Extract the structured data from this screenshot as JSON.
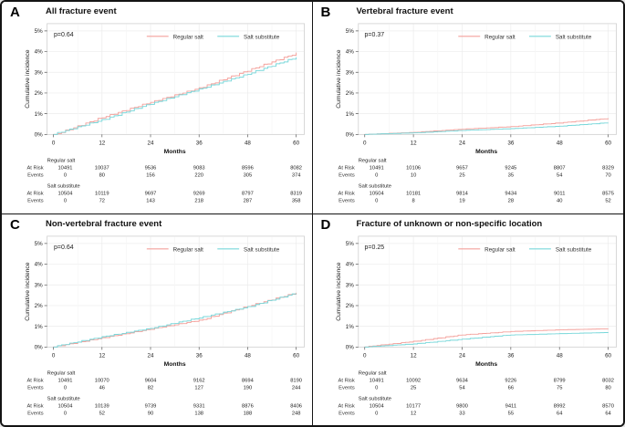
{
  "figure": {
    "legend": [
      {
        "name": "Regular salt",
        "color": "#F4A09B"
      },
      {
        "name": "Salt substitute",
        "color": "#78D7DA"
      }
    ],
    "axes": {
      "x_label": "Months",
      "y_label": "Cumulative incidence",
      "x_ticks": [
        0,
        12,
        24,
        36,
        48,
        60
      ],
      "y_tick_labels": [
        "0%",
        "1%",
        "2%",
        "3%",
        "4%",
        "5%"
      ],
      "ylim": [
        0,
        5
      ]
    },
    "risk_row_labels": {
      "at_risk": "At Risk",
      "events": "Events"
    }
  },
  "panels": [
    {
      "letter": "A",
      "title": "All fracture event",
      "p_value": "p=0.64",
      "risk_table": {
        "groups": [
          {
            "name": "Regular salt",
            "at_risk": [
              10491,
              10037,
              9536,
              9083,
              8596,
              8082
            ],
            "events": [
              0,
              80,
              156,
              220,
              305,
              374
            ]
          },
          {
            "name": "Salt substitute",
            "at_risk": [
              10504,
              10119,
              9697,
              9269,
              8797,
              8319
            ],
            "events": [
              0,
              72,
              143,
              218,
              287,
              358
            ]
          }
        ]
      }
    },
    {
      "letter": "B",
      "title": "Vertebral fracture event",
      "p_value": "p=0.37",
      "risk_table": {
        "groups": [
          {
            "name": "Regular salt",
            "at_risk": [
              10491,
              10106,
              9657,
              9245,
              8807,
              8329
            ],
            "events": [
              0,
              10,
              25,
              35,
              54,
              70
            ]
          },
          {
            "name": "Salt substitute",
            "at_risk": [
              10504,
              10181,
              9814,
              9434,
              9011,
              8575
            ],
            "events": [
              0,
              8,
              19,
              28,
              40,
              52
            ]
          }
        ]
      }
    },
    {
      "letter": "C",
      "title": "Non-vertebral fracture event",
      "p_value": "p=0.64",
      "risk_table": {
        "groups": [
          {
            "name": "Regular salt",
            "at_risk": [
              10491,
              10070,
              9604,
              9162,
              8694,
              8190
            ],
            "events": [
              0,
              46,
              82,
              127,
              190,
              244
            ]
          },
          {
            "name": "Salt substitute",
            "at_risk": [
              10504,
              10139,
              9739,
              9331,
              8876,
              8406
            ],
            "events": [
              0,
              52,
              90,
              138,
              188,
              248
            ]
          }
        ]
      }
    },
    {
      "letter": "D",
      "title": "Fracture of unknown or non-specific location",
      "p_value": "p=0.25",
      "risk_table": {
        "groups": [
          {
            "name": "Regular salt",
            "at_risk": [
              10491,
              10092,
              9634,
              9226,
              8799,
              8032
            ],
            "events": [
              0,
              25,
              54,
              66,
              75,
              80
            ]
          },
          {
            "name": "Salt substitute",
            "at_risk": [
              10504,
              10177,
              9800,
              9411,
              8992,
              8570
            ],
            "events": [
              0,
              12,
              33,
              55,
              64,
              64
            ]
          }
        ]
      }
    }
  ],
  "chart_data": [
    {
      "panel": "A",
      "type": "line",
      "title": "All fracture event",
      "x": [
        0,
        12,
        24,
        36,
        48,
        60
      ],
      "xlabel": "Months",
      "ylabel": "Cumulative incidence",
      "ylim": [
        0,
        5
      ],
      "y_tick_labels": [
        "0%",
        "1%",
        "2%",
        "3%",
        "4%",
        "5%"
      ],
      "legend_position": "top-inside",
      "grid": true,
      "series": [
        {
          "name": "Regular salt",
          "values_pct": [
            0,
            0.8,
            1.55,
            2.25,
            3.05,
            3.95
          ]
        },
        {
          "name": "Salt substitute",
          "values_pct": [
            0,
            0.72,
            1.45,
            2.2,
            2.9,
            3.72
          ]
        }
      ]
    },
    {
      "panel": "B",
      "type": "line",
      "title": "Vertebral fracture event",
      "x": [
        0,
        12,
        24,
        36,
        48,
        60
      ],
      "xlabel": "Months",
      "ylabel": "Cumulative incidence",
      "ylim": [
        0,
        5
      ],
      "y_tick_labels": [
        "0%",
        "1%",
        "2%",
        "3%",
        "4%",
        "5%"
      ],
      "legend_position": "top-inside",
      "grid": true,
      "series": [
        {
          "name": "Regular salt",
          "values_pct": [
            0,
            0.1,
            0.25,
            0.38,
            0.55,
            0.78
          ]
        },
        {
          "name": "Salt substitute",
          "values_pct": [
            0,
            0.08,
            0.19,
            0.28,
            0.4,
            0.56
          ]
        }
      ]
    },
    {
      "panel": "C",
      "type": "line",
      "title": "Non-vertebral fracture event",
      "x": [
        0,
        12,
        24,
        36,
        48,
        60
      ],
      "xlabel": "Months",
      "ylabel": "Cumulative incidence",
      "ylim": [
        0,
        5
      ],
      "y_tick_labels": [
        "0%",
        "1%",
        "2%",
        "3%",
        "4%",
        "5%"
      ],
      "legend_position": "top-inside",
      "grid": true,
      "series": [
        {
          "name": "Regular salt",
          "values_pct": [
            0,
            0.45,
            0.85,
            1.3,
            1.95,
            2.62
          ]
        },
        {
          "name": "Salt substitute",
          "values_pct": [
            0,
            0.5,
            0.9,
            1.4,
            1.95,
            2.58
          ]
        }
      ]
    },
    {
      "panel": "D",
      "type": "line",
      "title": "Fracture of unknown or non-specific location",
      "x": [
        0,
        12,
        24,
        36,
        48,
        60
      ],
      "xlabel": "Months",
      "ylabel": "Cumulative incidence",
      "ylim": [
        0,
        5
      ],
      "y_tick_labels": [
        "0%",
        "1%",
        "2%",
        "3%",
        "4%",
        "5%"
      ],
      "legend_position": "top-inside",
      "grid": true,
      "series": [
        {
          "name": "Regular salt",
          "values_pct": [
            0,
            0.28,
            0.58,
            0.75,
            0.83,
            0.88
          ]
        },
        {
          "name": "Salt substitute",
          "values_pct": [
            0,
            0.15,
            0.38,
            0.58,
            0.65,
            0.7
          ]
        }
      ]
    }
  ]
}
